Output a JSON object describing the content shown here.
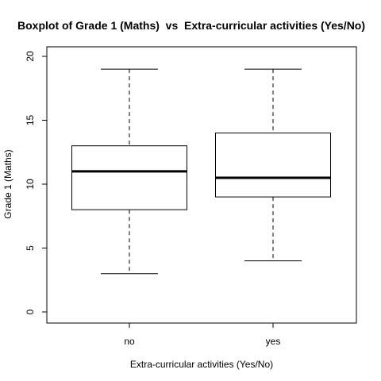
{
  "chart_data": {
    "type": "boxplot",
    "title": "Boxplot of Grade 1 (Maths)  vs  Extra-curricular activities (Yes/No)",
    "xlabel": "Extra-curricular activities (Yes/No)",
    "ylabel": "Grade 1 (Maths)",
    "ylim": [
      0,
      20
    ],
    "yticks": [
      0,
      5,
      10,
      15,
      20
    ],
    "grid": false,
    "categories": [
      "no",
      "yes"
    ],
    "boxes": [
      {
        "category": "no",
        "min": 3,
        "q1": 8,
        "median": 11,
        "q3": 13,
        "max": 19
      },
      {
        "category": "yes",
        "min": 4,
        "q1": 9,
        "median": 10.5,
        "q3": 14,
        "max": 19
      }
    ]
  }
}
